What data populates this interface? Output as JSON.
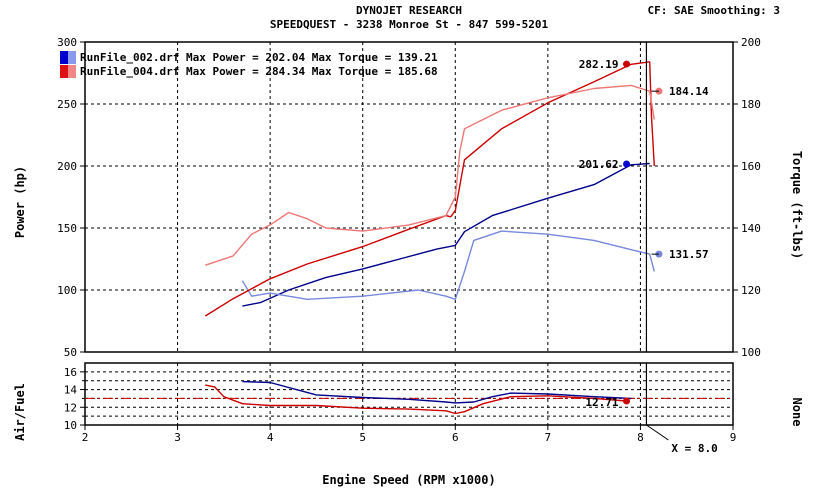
{
  "header": {
    "title": "DYNOJET RESEARCH",
    "subtitle": "SPEEDQUEST - 3238 Monroe St - 847 599-5201",
    "settings": "CF: SAE  Smoothing: 3"
  },
  "legend": [
    {
      "text": "RunFile_002.drf Max Power = 202.04    Max Torque = 139.21",
      "color": "#0000cc"
    },
    {
      "text": "RunFile_004.drf Max Power = 284.34    Max Torque = 185.68",
      "color": "#dd1111"
    }
  ],
  "cursor_label": "X = 8.0",
  "colors": {
    "run1_power": "#00008b",
    "run1_torque": "#7788dd",
    "run2_power": "#cc0000",
    "run2_torque": "#ee7777",
    "grid": "#000000",
    "target_line": "#cc0000"
  },
  "chart_data": [
    {
      "type": "line",
      "name": "power_torque",
      "xlabel": "Engine Speed (RPM x1000)",
      "ylabel": "Power (hp)",
      "y2label": "Torque (ft-lbs)",
      "xlim": [
        2,
        9
      ],
      "ylim": [
        50,
        300
      ],
      "y2lim": [
        100,
        200
      ],
      "x_ticks": [
        "2",
        "3",
        "4",
        "5",
        "6",
        "7",
        "8",
        "9"
      ],
      "y_ticks": [
        "50",
        "100",
        "150",
        "200",
        "250",
        "300"
      ],
      "y2_ticks": [
        "100",
        "120",
        "140",
        "160",
        "180",
        "200"
      ],
      "grid": true,
      "cursor_x": 8.0,
      "series": [
        {
          "name": "RunFile_002 Power",
          "axis": "left",
          "color": "#00008b",
          "x": [
            3.7,
            3.9,
            4.2,
            4.6,
            5.0,
            5.4,
            5.8,
            6.0,
            6.1,
            6.4,
            7.0,
            7.5,
            7.9,
            8.1
          ],
          "y": [
            87,
            90,
            100,
            110,
            117,
            125,
            133,
            136,
            147,
            160,
            174,
            185,
            201,
            202
          ]
        },
        {
          "name": "RunFile_002 Torque",
          "axis": "right",
          "color": "#7788dd",
          "x": [
            3.7,
            3.8,
            4.0,
            4.4,
            5.0,
            5.6,
            5.9,
            6.0,
            6.1,
            6.2,
            6.5,
            7.0,
            7.5,
            7.9,
            8.1,
            8.15
          ],
          "y": [
            123,
            118,
            119,
            117,
            118,
            120,
            118,
            117,
            126,
            136,
            139,
            138,
            136,
            133,
            131.57,
            126
          ]
        },
        {
          "name": "RunFile_004 Power",
          "axis": "left",
          "color": "#cc0000",
          "x": [
            3.3,
            3.6,
            4.0,
            4.4,
            5.0,
            5.5,
            5.9,
            5.95,
            6.0,
            6.1,
            6.5,
            7.0,
            7.5,
            7.9,
            8.1,
            8.12,
            8.15
          ],
          "y": [
            79,
            93,
            109,
            121,
            135,
            149,
            160,
            159,
            164,
            205,
            230,
            251,
            268,
            282,
            284,
            240,
            200
          ]
        },
        {
          "name": "RunFile_004 Torque",
          "axis": "right",
          "color": "#ee7777",
          "x": [
            3.3,
            3.6,
            3.8,
            4.0,
            4.2,
            4.4,
            4.6,
            5.0,
            5.5,
            5.9,
            6.0,
            6.05,
            6.1,
            6.5,
            7.0,
            7.5,
            7.9,
            8.1,
            8.15
          ],
          "y": [
            128,
            131,
            138,
            141,
            145,
            143,
            140,
            139,
            141,
            144,
            150,
            165,
            172,
            178,
            182,
            185,
            186,
            184.14,
            175
          ]
        }
      ],
      "annotations": [
        {
          "label": "282.19",
          "x": 7.85,
          "y": 282.19,
          "axis": "left",
          "color": "#cc0000"
        },
        {
          "label": "201.62",
          "x": 7.85,
          "y": 201.62,
          "axis": "left",
          "color": "#0000cc"
        },
        {
          "label": "184.14",
          "x": 8.2,
          "y": 184.14,
          "axis": "right",
          "color": "#ee7777"
        },
        {
          "label": "131.57",
          "x": 8.2,
          "y": 131.57,
          "axis": "right",
          "color": "#7788dd"
        }
      ]
    },
    {
      "type": "line",
      "name": "air_fuel",
      "xlabel": "Engine Speed (RPM x1000)",
      "ylabel": "Air/Fuel",
      "y2label": "None",
      "xlim": [
        2,
        9
      ],
      "ylim": [
        10,
        17
      ],
      "x_ticks": [
        "2",
        "3",
        "4",
        "5",
        "6",
        "7",
        "8",
        "9"
      ],
      "y_ticks": [
        "10",
        "12",
        "14",
        "16"
      ],
      "y_minor_ticks": [
        "11",
        "13",
        "15"
      ],
      "grid": true,
      "target_afr": 13.0,
      "series": [
        {
          "name": "RunFile_002 A/F",
          "color": "#00008b",
          "x": [
            3.7,
            4.0,
            4.5,
            5.0,
            5.5,
            5.9,
            6.0,
            6.2,
            6.4,
            6.6,
            7.0,
            7.5,
            7.9
          ],
          "y": [
            14.9,
            14.8,
            13.4,
            13.1,
            12.9,
            12.6,
            12.5,
            12.6,
            13.2,
            13.6,
            13.5,
            13.2,
            13.0
          ]
        },
        {
          "name": "RunFile_004 A/F",
          "color": "#cc0000",
          "x": [
            3.3,
            3.4,
            3.5,
            3.7,
            4.0,
            4.5,
            5.0,
            5.5,
            5.9,
            6.0,
            6.1,
            6.3,
            6.6,
            7.0,
            7.5,
            7.85
          ],
          "y": [
            14.5,
            14.3,
            13.2,
            12.4,
            12.2,
            12.2,
            11.9,
            11.8,
            11.6,
            11.3,
            11.5,
            12.4,
            13.2,
            13.3,
            13.0,
            12.71
          ]
        }
      ],
      "annotations": [
        {
          "label": "12.71",
          "x": 7.85,
          "y": 12.71,
          "color": "#cc0000"
        }
      ]
    }
  ]
}
